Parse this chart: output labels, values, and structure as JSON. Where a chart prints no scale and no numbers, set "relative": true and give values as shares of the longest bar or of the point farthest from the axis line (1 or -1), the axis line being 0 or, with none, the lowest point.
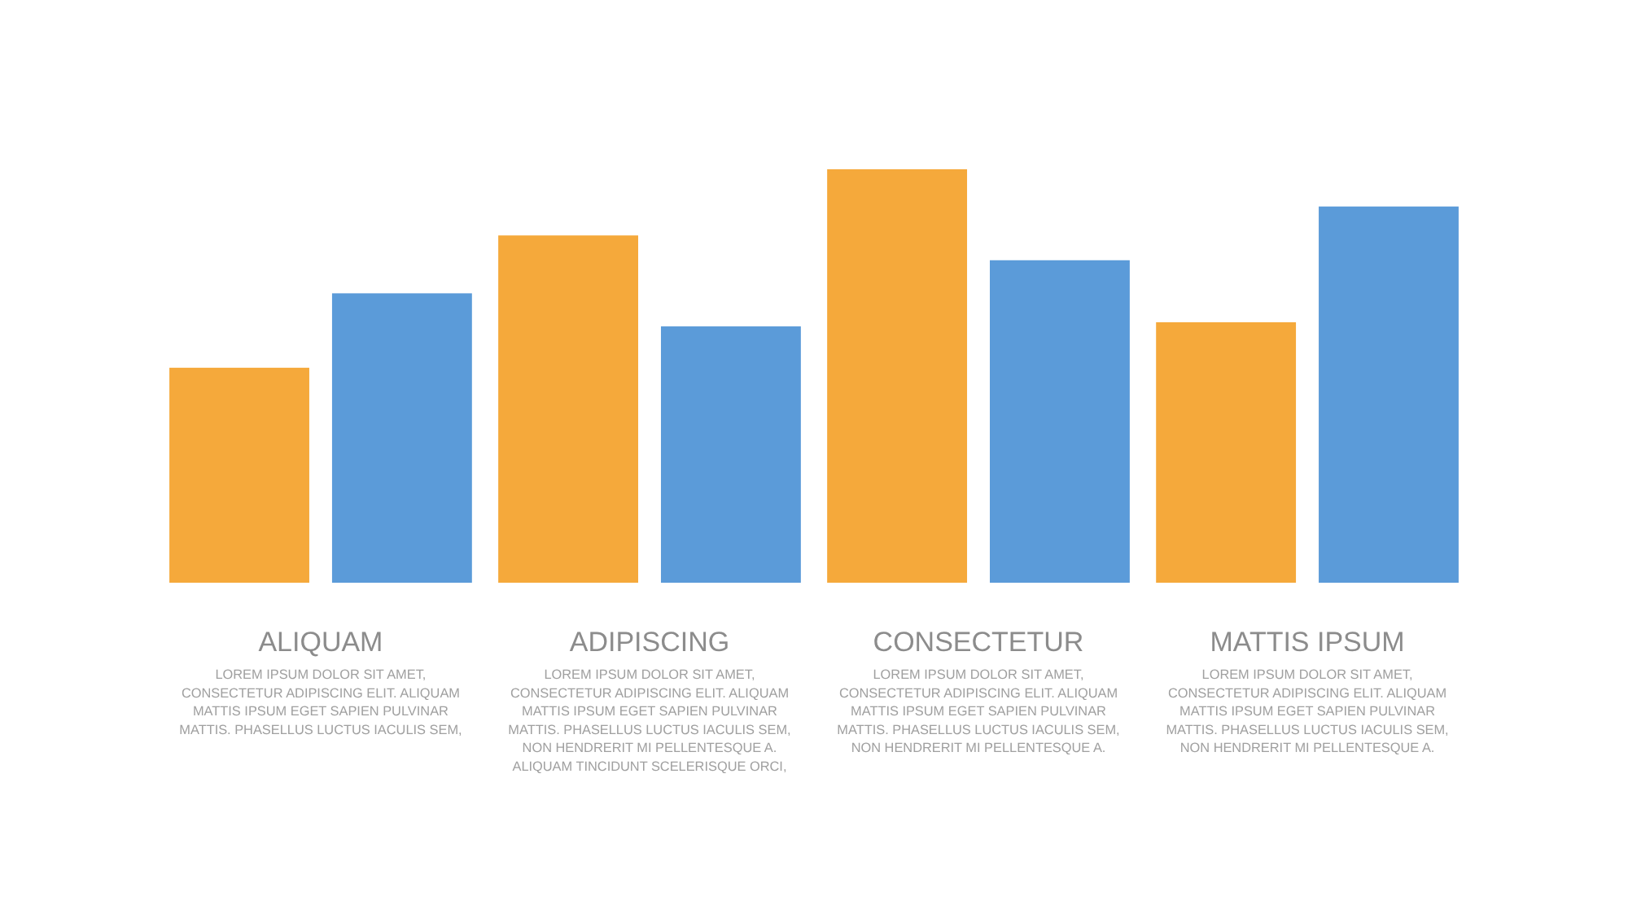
{
  "chart_data": {
    "type": "bar",
    "relative": true,
    "categories": [
      "ALIQUAM",
      "ADIPISCING",
      "CONSECTETUR",
      "MATTIS IPSUM"
    ],
    "series": [
      {
        "color": "#f5a93b",
        "values": [
          0.52,
          0.84,
          1,
          0.63
        ]
      },
      {
        "color": "#5b9bd9",
        "values": [
          0.7,
          0.62,
          0.78,
          0.91
        ]
      }
    ],
    "annotations": [
      "LOREM IPSUM DOLOR SIT AMET,\nCONSECTETUR ADIPISCING ELIT. ALIQUAM\nMATTIS IPSUM EGET SAPIEN PULVINAR\nMATTIS. PHASELLUS LUCTUS IACULIS SEM,",
      "LOREM IPSUM DOLOR SIT AMET,\nCONSECTETUR ADIPISCING ELIT. ALIQUAM\nMATTIS IPSUM EGET SAPIEN PULVINAR\nMATTIS. PHASELLUS LUCTUS IACULIS SEM,\nNON HENDRERIT MI PELLENTESQUE A.\nALIQUAM TINCIDUNT SCELERISQUE ORCI,",
      "LOREM IPSUM DOLOR SIT AMET,\nCONSECTETUR ADIPISCING ELIT. ALIQUAM\nMATTIS IPSUM EGET SAPIEN PULVINAR\nMATTIS. PHASELLUS LUCTUS IACULIS SEM,\nNON HENDRERIT MI PELLENTESQUE A.",
      "LOREM IPSUM DOLOR SIT AMET,\nCONSECTETUR ADIPISCING ELIT. ALIQUAM\nMATTIS IPSUM EGET SAPIEN PULVINAR\nMATTIS. PHASELLUS LUCTUS IACULIS SEM,\nNON HENDRERIT MI PELLENTESQUE A."
    ]
  }
}
